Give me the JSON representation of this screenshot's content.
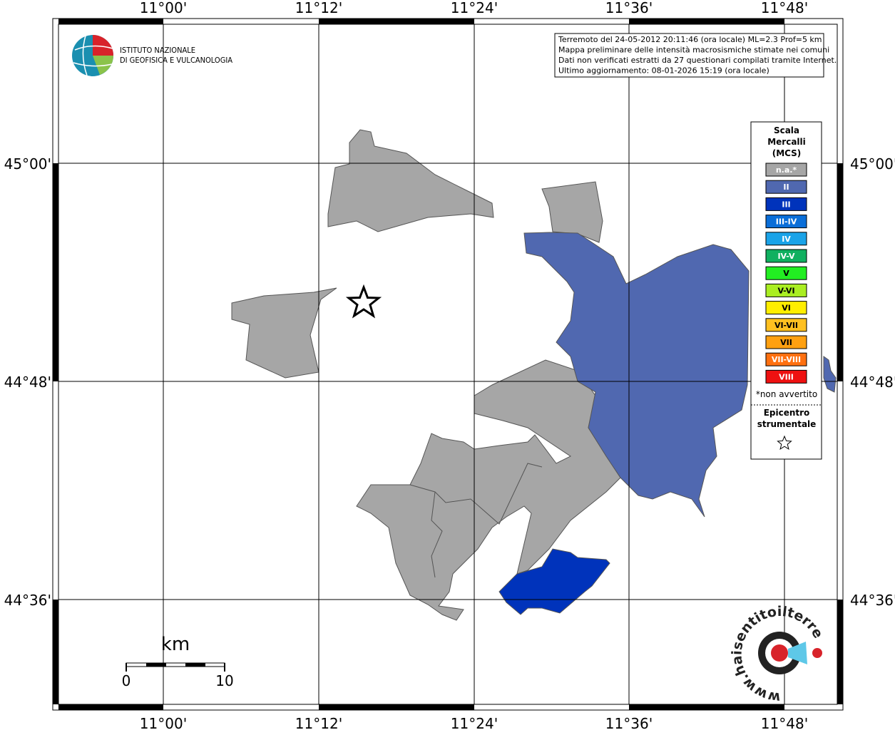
{
  "header": {
    "info_lines": [
      "Terremoto del 24-05-2012 20:11:46 (ora locale) ML=2.3 Prof=5 km",
      "Mappa preliminare delle intensità macrosismiche stimate nei comuni",
      "Dati non verificati estratti da 27 questionari compilati tramite Internet.",
      "Ultimo aggiornamento: 08-01-2026 15:19 (ora locale)"
    ]
  },
  "logo": {
    "line1": "ISTITUTO NAZIONALE",
    "line2": "DI GEOFISICA E VULCANOLOGIA"
  },
  "axes": {
    "x_labels": [
      "11°00'",
      "11°12'",
      "11°24'",
      "11°36'",
      "11°48'"
    ],
    "y_labels": [
      "45°00'",
      "44°48'",
      "44°36'"
    ]
  },
  "legend": {
    "title_lines": [
      "Scala",
      "Mercalli",
      "(MCS)"
    ],
    "items": [
      {
        "label": "n.a.*",
        "color": "#a6a6a6"
      },
      {
        "label": "II",
        "color": "#5068b0"
      },
      {
        "label": "III",
        "color": "#0033bb"
      },
      {
        "label": "III-IV",
        "color": "#0a6ed8"
      },
      {
        "label": "IV",
        "color": "#1aa3e8"
      },
      {
        "label": "IV-V",
        "color": "#10b060"
      },
      {
        "label": "V",
        "color": "#22ee22"
      },
      {
        "label": "V-VI",
        "color": "#aaee22"
      },
      {
        "label": "VI",
        "color": "#ffee00"
      },
      {
        "label": "VI-VII",
        "color": "#ffc020"
      },
      {
        "label": "VII",
        "color": "#ffa010"
      },
      {
        "label": "VII-VIII",
        "color": "#ff7010"
      },
      {
        "label": "VIII",
        "color": "#ee1111"
      }
    ],
    "note": "*non avvertito",
    "epicenter_lines": [
      "Epicentro",
      "strumentale"
    ]
  },
  "scale_bar": {
    "unit": "km",
    "start": "0",
    "end": "10"
  },
  "badge": {
    "text": "www.haisentitoilterremoto.it"
  }
}
